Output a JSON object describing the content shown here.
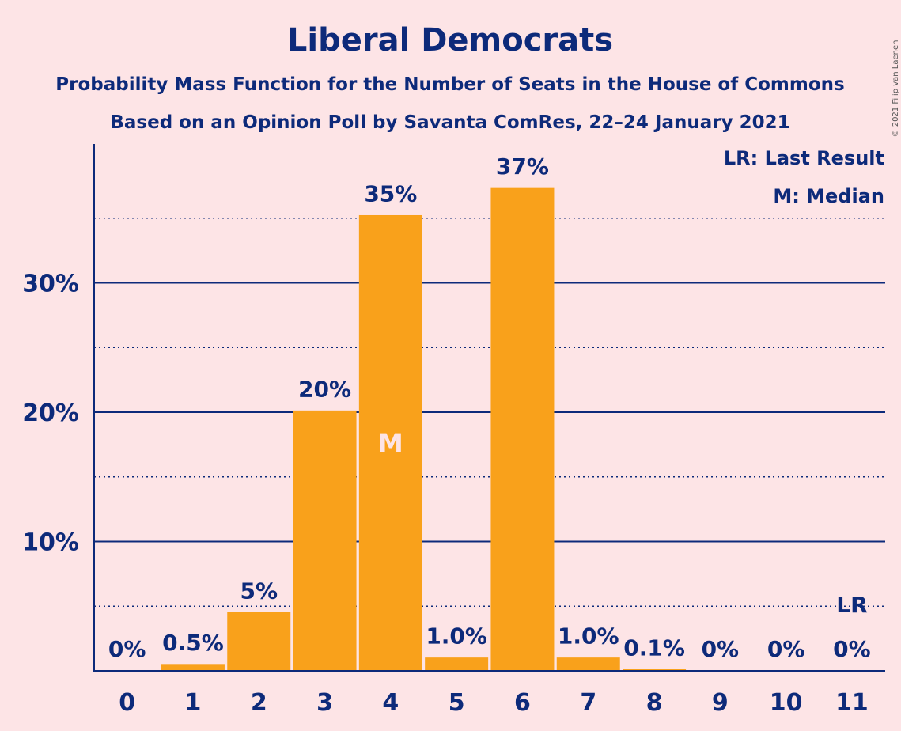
{
  "chart_data": {
    "type": "bar",
    "title": "Liberal Democrats",
    "subtitle": "Probability Mass Function for the Number of Seats in the House of Commons",
    "subtitle2": "Based on an Opinion Poll by Savanta ComRes, 22–24 January 2021",
    "categories": [
      "0",
      "1",
      "2",
      "3",
      "4",
      "5",
      "6",
      "7",
      "8",
      "9",
      "10",
      "11"
    ],
    "values": [
      0,
      0.5,
      4.5,
      20.1,
      35.2,
      1.0,
      37.3,
      1.0,
      0.1,
      0,
      0,
      0
    ],
    "data_labels": [
      "0%",
      "0.5%",
      "5%",
      "20%",
      "35%",
      "1.0%",
      "37%",
      "1.0%",
      "0.1%",
      "0%",
      "0%",
      "0%"
    ],
    "ylim": [
      0,
      40
    ],
    "y_ticks": [
      {
        "value": 10,
        "label": "10%"
      },
      {
        "value": 20,
        "label": "20%"
      },
      {
        "value": 30,
        "label": "30%"
      }
    ],
    "minor_gridlines": [
      5,
      15,
      25,
      35
    ],
    "median_index": 4,
    "median_marker": "M",
    "last_result_index": 11,
    "last_result_marker": "LR",
    "legend": [
      "LR: Last Result",
      "M: Median"
    ],
    "legend_position": "top-right",
    "bar_color": "#f9a11b",
    "text_color": "#0d2a7a",
    "background_color": "#fde4e6"
  },
  "copyright": "© 2021 Filip van Laenen"
}
